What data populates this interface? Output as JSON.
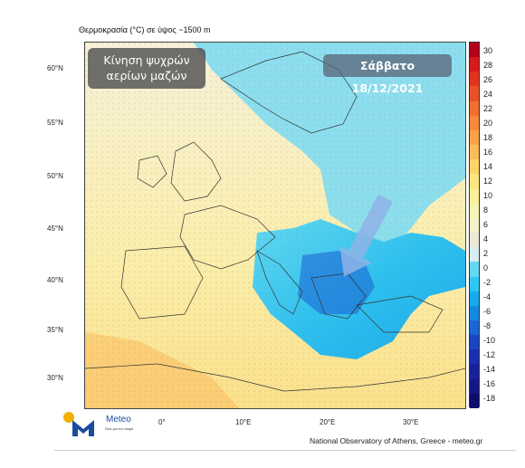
{
  "title": "Θερμοκρασία (°C) σε ύψος ~1500 m",
  "label": {
    "line1": "Κίνηση ψυχρών",
    "line2": "αερίων μαζών"
  },
  "date": "Σάββατο 18/12/2021",
  "lat_labels": [
    "60°N",
    "55°N",
    "50°N",
    "45°N",
    "40°N",
    "35°N",
    "30°N"
  ],
  "lon_labels": [
    "0°",
    "10°E",
    "20°E",
    "30°E"
  ],
  "colorbar": {
    "labels": [
      "30",
      "28",
      "26",
      "24",
      "22",
      "20",
      "18",
      "16",
      "14",
      "12",
      "10",
      "8",
      "6",
      "4",
      "2",
      "0",
      "-2",
      "-4",
      "-6",
      "-8",
      "-10",
      "-12",
      "-14",
      "-16",
      "-18"
    ],
    "colors": [
      "#b3001b",
      "#d7191c",
      "#e0341f",
      "#ea5226",
      "#f07030",
      "#f58a3c",
      "#f8a34a",
      "#fbbd58",
      "#fdd468",
      "#fde67f",
      "#fbf099",
      "#f7f3b2",
      "#f3f1c9",
      "#ece9d8",
      "#d9eef2",
      "#63d8f0",
      "#2ec7ef",
      "#1aa9ea",
      "#1788e0",
      "#1a66d3",
      "#1a46c1",
      "#1a2fae",
      "#18209a",
      "#141785",
      "#0d0d6a"
    ]
  },
  "logo": {
    "name": "Meteo",
    "tagline": "Όλα για τον καιρό"
  },
  "footer": "National Observatory of Athens, Greece - meteo.gr",
  "colors": {
    "sea": "#e7e2c5",
    "land": "#f3efd7",
    "cold": "#2ec1ef",
    "deep_cold": "#1a66d3",
    "warm": "#fbe58c",
    "arrow": "#8fb3e8"
  },
  "icons": [
    "arrow-icon",
    "meteo-logo-icon"
  ]
}
